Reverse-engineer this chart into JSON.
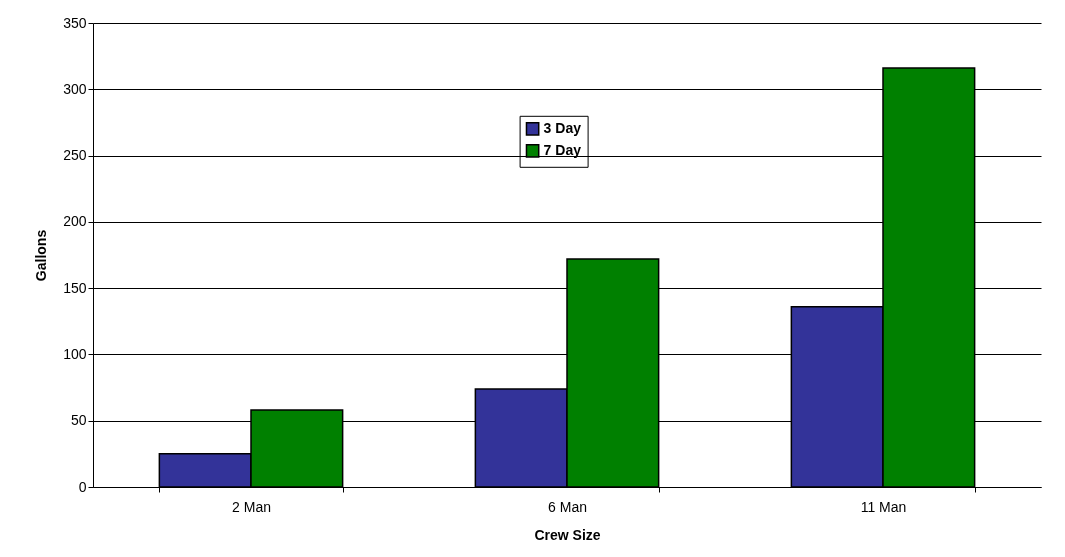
{
  "chart_data": {
    "type": "bar",
    "xlabel": "Crew Size",
    "ylabel": "Gallons",
    "categories": [
      "2 Man",
      "6 Man",
      "11 Man"
    ],
    "series": [
      {
        "name": "3 Day",
        "color": "#333399",
        "values": [
          25,
          74,
          136
        ]
      },
      {
        "name": "7 Day",
        "color": "#008000",
        "values": [
          58,
          172,
          316
        ]
      }
    ],
    "ylim": [
      0,
      350
    ],
    "yticks": [
      0,
      50,
      100,
      150,
      200,
      250,
      300,
      350
    ],
    "grid": "y",
    "legend": "top"
  }
}
